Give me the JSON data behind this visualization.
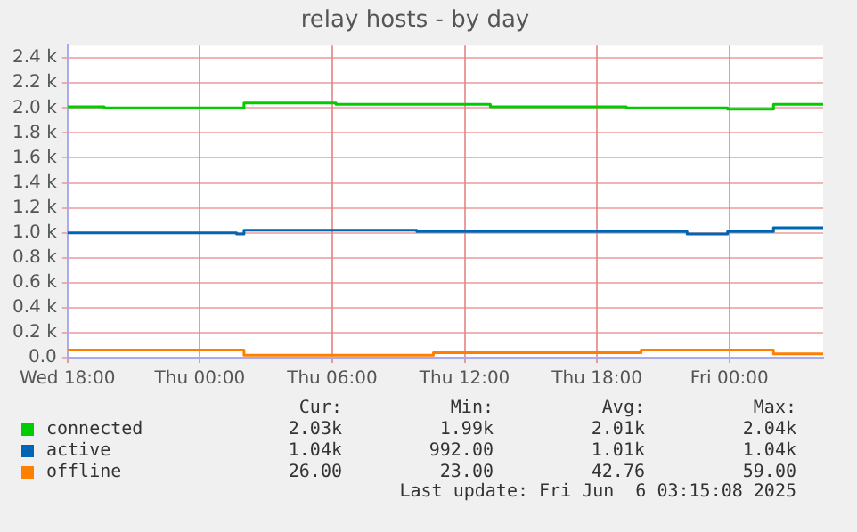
{
  "chart_data": {
    "type": "step",
    "title": "relay hosts - by day",
    "xlim": [
      "2025-06-04T18:00",
      "2025-06-06T04:15"
    ],
    "xticks": [
      {
        "value": "2025-06-04T18:00",
        "label": "Wed 18:00"
      },
      {
        "value": "2025-06-05T00:00",
        "label": "Thu 00:00"
      },
      {
        "value": "2025-06-05T06:00",
        "label": "Thu 06:00"
      },
      {
        "value": "2025-06-05T12:00",
        "label": "Thu 12:00"
      },
      {
        "value": "2025-06-05T18:00",
        "label": "Thu 18:00"
      },
      {
        "value": "2025-06-06T00:00",
        "label": "Fri 00:00"
      }
    ],
    "ylim": [
      0,
      2500
    ],
    "yticks": [
      {
        "value": 0,
        "label": "0.0"
      },
      {
        "value": 200,
        "label": "0.2 k"
      },
      {
        "value": 400,
        "label": "0.4 k"
      },
      {
        "value": 600,
        "label": "0.6 k"
      },
      {
        "value": 800,
        "label": "0.8 k"
      },
      {
        "value": 1000,
        "label": "1.0 k"
      },
      {
        "value": 1200,
        "label": "1.2 k"
      },
      {
        "value": 1400,
        "label": "1.4 k"
      },
      {
        "value": 1600,
        "label": "1.6 k"
      },
      {
        "value": 1800,
        "label": "1.8 k"
      },
      {
        "value": 2000,
        "label": "2.0 k"
      },
      {
        "value": 2200,
        "label": "2.2 k"
      },
      {
        "value": 2400,
        "label": "2.4 k"
      }
    ],
    "grid": true,
    "legend": "bottom",
    "series": [
      {
        "name": "connected",
        "color": "#00cc00",
        "x": [
          "2025-06-04T18:00",
          "2025-06-04T19:40",
          "2025-06-05T02:00",
          "2025-06-05T06:10",
          "2025-06-05T13:10",
          "2025-06-05T19:20",
          "2025-06-05T23:55",
          "2025-06-06T02:00",
          "2025-06-06T04:15"
        ],
        "values": [
          2010,
          2000,
          2040,
          2030,
          2010,
          2000,
          1990,
          2030,
          2030
        ]
      },
      {
        "name": "active",
        "color": "#0066b3",
        "x": [
          "2025-06-04T18:00",
          "2025-06-05T01:40",
          "2025-06-05T02:00",
          "2025-06-05T09:50",
          "2025-06-05T22:05",
          "2025-06-05T23:55",
          "2025-06-06T02:00",
          "2025-06-06T04:15"
        ],
        "values": [
          1000,
          990,
          1020,
          1010,
          990,
          1010,
          1040,
          1040
        ]
      },
      {
        "name": "offline",
        "color": "#ff8000",
        "x": [
          "2025-06-04T18:00",
          "2025-06-05T02:00",
          "2025-06-05T10:35",
          "2025-06-05T20:00",
          "2025-06-06T02:00",
          "2025-06-06T04:15"
        ],
        "values": [
          60,
          20,
          40,
          60,
          30,
          30
        ]
      }
    ],
    "annotations": [
      "Cur:",
      "Min:",
      "Avg:",
      "Max:",
      "2.03k",
      "1.99k",
      "2.01k",
      "2.04k",
      "1.04k",
      "992.00",
      "1.01k",
      "1.04k",
      "26.00",
      "23.00",
      "42.76",
      "59.00",
      "Last update: Fri Jun  6 03:15:08 2025"
    ]
  }
}
